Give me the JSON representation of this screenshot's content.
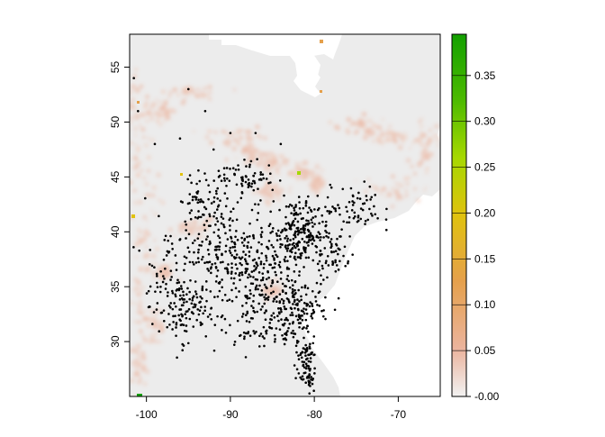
{
  "map": {
    "x_ticks": [
      {
        "value": -100,
        "label": "-100"
      },
      {
        "value": -90,
        "label": "-90"
      },
      {
        "value": -80,
        "label": "-80"
      },
      {
        "value": -70,
        "label": "-70"
      }
    ],
    "y_ticks": [
      {
        "value": 30,
        "label": "30"
      },
      {
        "value": 35,
        "label": "35"
      },
      {
        "value": 40,
        "label": "40"
      },
      {
        "value": 45,
        "label": "45"
      },
      {
        "value": 50,
        "label": "50"
      },
      {
        "value": 55,
        "label": "55"
      }
    ],
    "xlim": [
      -102,
      -65
    ],
    "ylim": [
      25,
      58
    ],
    "background_color": "#ececec",
    "point_color": "#000000"
  },
  "legend": {
    "ticks": [
      {
        "value": 0.0,
        "label": "-0.00"
      },
      {
        "value": 0.05,
        "label": "0.05"
      },
      {
        "value": 0.1,
        "label": "0.10"
      },
      {
        "value": 0.15,
        "label": "0.15"
      },
      {
        "value": 0.2,
        "label": "0.20"
      },
      {
        "value": 0.25,
        "label": "0.25"
      },
      {
        "value": 0.3,
        "label": "0.30"
      },
      {
        "value": 0.35,
        "label": "0.35"
      }
    ],
    "range": [
      0.0,
      0.395
    ],
    "colors": [
      "#f2f2f2",
      "#ebb49e",
      "#e5a04b",
      "#e0c20e",
      "#a6d800",
      "#4cba00",
      "#13a000"
    ]
  }
}
